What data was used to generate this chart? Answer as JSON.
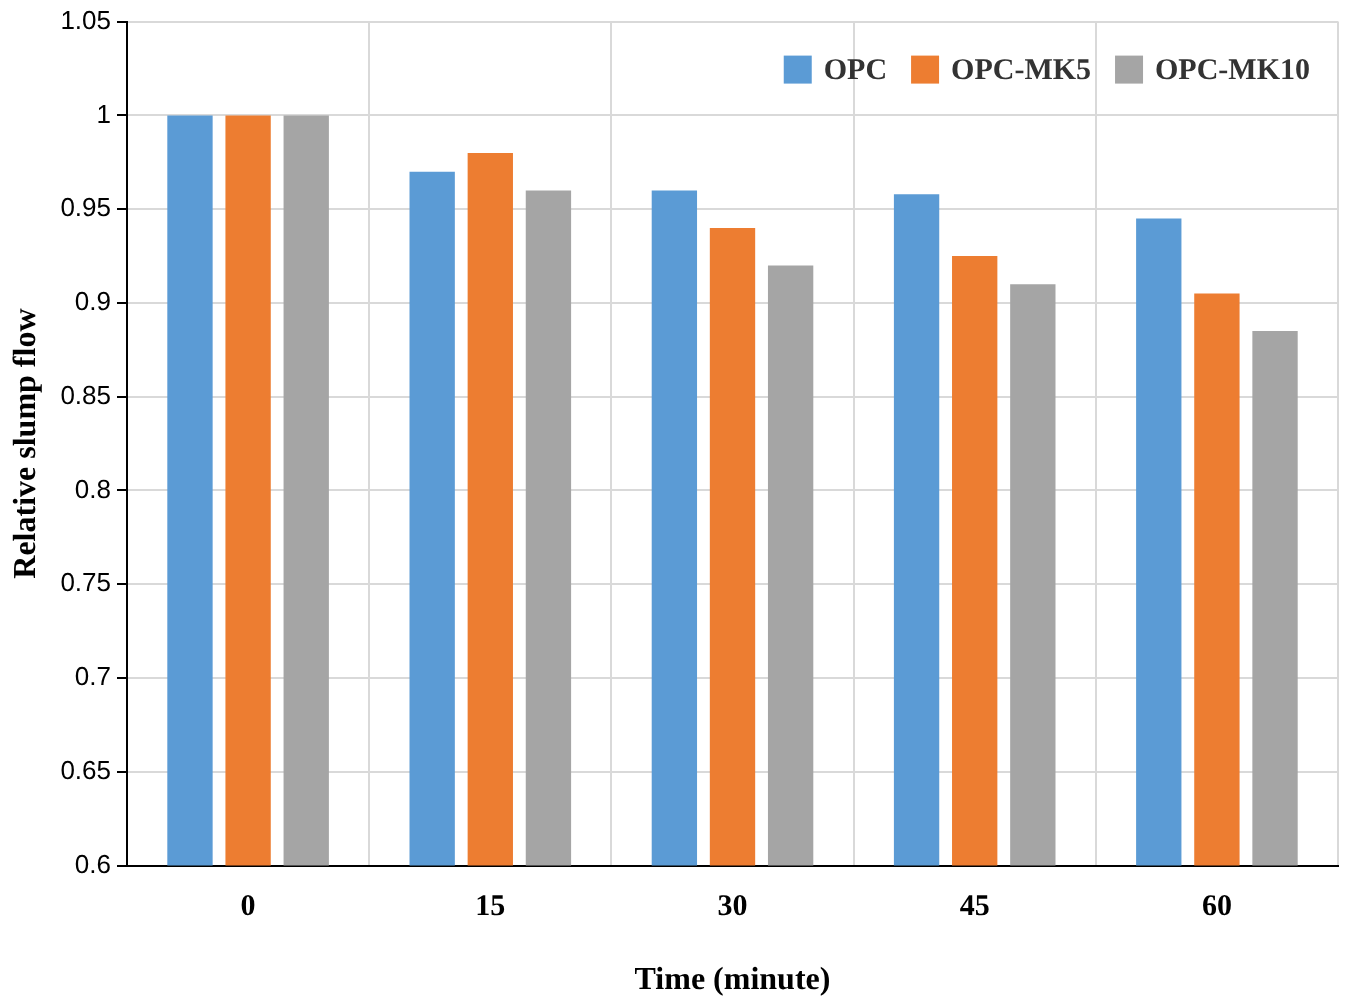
{
  "chart_data": {
    "type": "bar",
    "xlabel": "Time (minute)",
    "ylabel": "Relative slump flow",
    "categories": [
      "0",
      "15",
      "30",
      "45",
      "60"
    ],
    "series": [
      {
        "name": "OPC",
        "color": "#5b9bd5",
        "values": [
          1,
          0.97,
          0.96,
          0.958,
          0.945
        ]
      },
      {
        "name": "OPC-MK5",
        "color": "#ed7d31",
        "values": [
          1,
          0.98,
          0.94,
          0.925,
          0.905
        ]
      },
      {
        "name": "OPC-MK10",
        "color": "#a5a5a5",
        "values": [
          1,
          0.96,
          0.92,
          0.91,
          0.885
        ]
      }
    ],
    "ylim": [
      0.6,
      1.05
    ],
    "yticks": [
      0.6,
      0.65,
      0.7,
      0.75,
      0.8,
      0.85,
      0.9,
      0.95,
      1,
      1.05
    ],
    "grid": true,
    "legend": "top right"
  }
}
